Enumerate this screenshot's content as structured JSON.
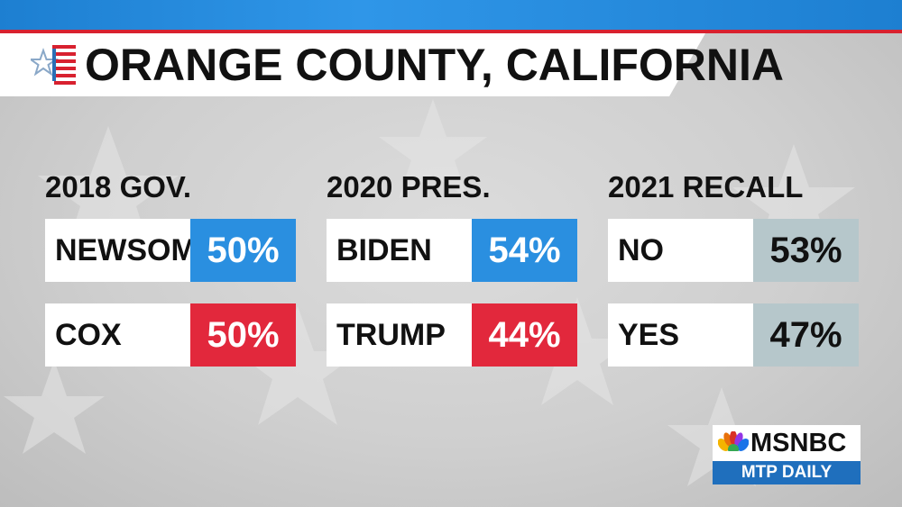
{
  "title": "ORANGE COUNTY, CALIFORNIA",
  "columns": [
    {
      "heading": "2018 GOV.",
      "rows": [
        {
          "label": "NEWSOM",
          "value": "50%",
          "color": "#2a8fe0"
        },
        {
          "label": "COX",
          "value": "50%",
          "color": "#e2283c"
        }
      ]
    },
    {
      "heading": "2020 PRES.",
      "rows": [
        {
          "label": "BIDEN",
          "value": "54%",
          "color": "#2a8fe0"
        },
        {
          "label": "TRUMP",
          "value": "44%",
          "color": "#e2283c"
        }
      ]
    },
    {
      "heading": "2021 RECALL",
      "rows": [
        {
          "label": "NO",
          "value": "53%",
          "color": "#b6c7cb"
        },
        {
          "label": "YES",
          "value": "47%",
          "color": "#b6c7cb"
        }
      ]
    }
  ],
  "brand": {
    "network": "MSNBC",
    "show": "MTP DAILY"
  },
  "colors": {
    "top_blue": "#2f96e8",
    "accent_red": "#d8212f",
    "dem_blue": "#2a8fe0",
    "rep_red": "#e2283c",
    "recall_gray": "#b6c7cb"
  },
  "icons": {
    "logo": "flag-star-icon",
    "brand_logo": "peacock-icon"
  }
}
